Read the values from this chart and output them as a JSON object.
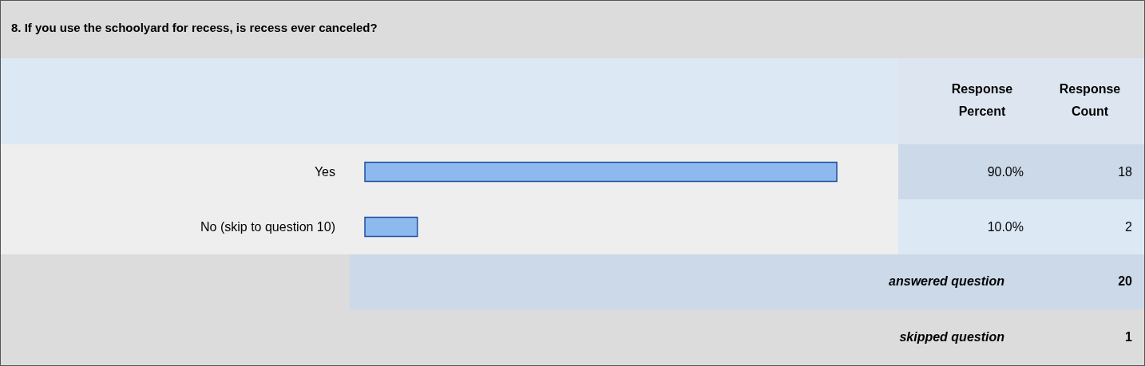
{
  "chart_data": {
    "type": "bar",
    "orientation": "horizontal",
    "title": "8. If you use the schoolyard for recess, is recess ever canceled?",
    "categories": [
      "Yes",
      "No (skip to question 10)"
    ],
    "values": [
      90.0,
      10.0
    ],
    "value_labels": [
      "90.0%",
      "10.0%"
    ],
    "color": "#8db9ef",
    "annotations": [
      "Response Percent",
      "Response Count",
      "18",
      "2",
      "answered question",
      "20",
      "skipped question",
      "1"
    ]
  }
}
